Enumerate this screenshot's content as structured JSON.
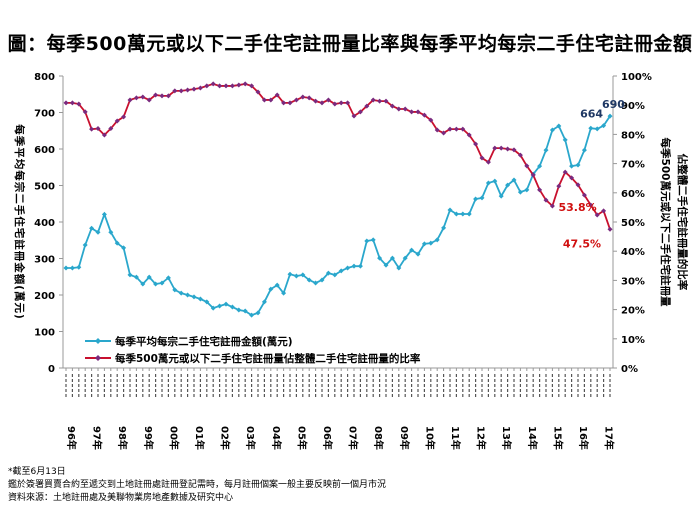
{
  "title": "圖：每季500萬元或以下二手住宅註冊量比率與每季平均每宗二手住宅註冊金額",
  "notes": [
    "*截至6月13日",
    "鑑於簽署買賣合約至遞交到土地註冊處註冊登記需時，每月註冊個案一般主要反映前一個月市況",
    "資料來源：土地註冊處及美聯物業房地產數據及研究中心"
  ],
  "chart_data": {
    "type": "line",
    "title": "圖：每季500萬元或以下二手住宅註冊量比率與每季平均每宗二手住宅註冊金額",
    "years": [
      "96年",
      "97年",
      "98年",
      "99年",
      "00年",
      "01年",
      "02年",
      "03年",
      "04年",
      "05年",
      "06年",
      "07年",
      "08年",
      "09年",
      "10年",
      "11年",
      "12年",
      "13年",
      "14年",
      "15年",
      "16年",
      "17年"
    ],
    "ylabel_left": "每季平均每宗二手住宅註冊金額(萬元)",
    "ylabel_right": [
      "每季500萬元或以下二手住宅註冊量",
      "佔整體二手住宅註冊量的比率"
    ],
    "yleft": {
      "min": 0,
      "max": 800,
      "ticks": [
        "0",
        "100",
        "200",
        "300",
        "400",
        "500",
        "600",
        "700",
        "800"
      ]
    },
    "yright": {
      "min": 0,
      "max": 100,
      "ticks": [
        "0%",
        "10%",
        "20%",
        "30%",
        "40%",
        "50%",
        "60%",
        "70%",
        "80%",
        "90%",
        "100%"
      ]
    },
    "legend_position": "bottom-left-inside",
    "series": [
      {
        "name": "每季平均每宗二手住宅註冊金額(萬元)",
        "axis": "left",
        "color": "#2aa7cc",
        "values": [
          274,
          274,
          276,
          337,
          383,
          372,
          421,
          372,
          342,
          329,
          255,
          249,
          230,
          249,
          230,
          233,
          247,
          214,
          205,
          200,
          195,
          189,
          181,
          164,
          170,
          175,
          167,
          159,
          156,
          145,
          151,
          181,
          216,
          227,
          205,
          257,
          252,
          255,
          241,
          233,
          241,
          260,
          255,
          266,
          274,
          279,
          279,
          348,
          351,
          301,
          282,
          301,
          274,
          301,
          323,
          312,
          340,
          342,
          351,
          384,
          433,
          422,
          422,
          422,
          463,
          466,
          507,
          512,
          471,
          501,
          515,
          482,
          488,
          531,
          553,
          597,
          652,
          663,
          625,
          553,
          556,
          597,
          657,
          655,
          664,
          690
        ],
        "annotations": [
          {
            "index": 84,
            "text": "664"
          },
          {
            "index": 85,
            "text": "690"
          }
        ]
      },
      {
        "name": "每季500萬元或以下二手住宅註冊量佔整體二手住宅註冊量的比率",
        "axis": "right",
        "color": "#c8102e",
        "marker_color": "#7a2a7e",
        "values": [
          90.8,
          90.8,
          90.4,
          87.7,
          81.8,
          82,
          79.8,
          82,
          84.6,
          86,
          91.8,
          92.5,
          92.8,
          91.8,
          93.5,
          93.2,
          93.2,
          94.9,
          94.9,
          95.2,
          95.5,
          95.9,
          96.6,
          97.3,
          96.6,
          96.6,
          96.6,
          96.9,
          97.3,
          96.6,
          94.5,
          91.8,
          91.8,
          93.5,
          90.8,
          90.8,
          91.8,
          92.8,
          92.5,
          91.4,
          90.8,
          91.8,
          90.4,
          90.8,
          90.8,
          86.3,
          87.7,
          89.7,
          91.8,
          91.4,
          91.4,
          89.7,
          88.7,
          88.7,
          87.7,
          87.7,
          86.6,
          84.9,
          81.5,
          80.5,
          81.8,
          81.8,
          81.8,
          79.8,
          76.7,
          71.9,
          70.5,
          75.3,
          75.3,
          75,
          74.7,
          72.9,
          69.2,
          66.1,
          61,
          57.5,
          55.5,
          62.3,
          67.1,
          65.1,
          62.7,
          59.2,
          55.8,
          52.4,
          53.8,
          47.5
        ],
        "annotations": [
          {
            "index": 84,
            "text": "53.8%"
          },
          {
            "index": 85,
            "text": "47.5%"
          }
        ]
      }
    ]
  }
}
